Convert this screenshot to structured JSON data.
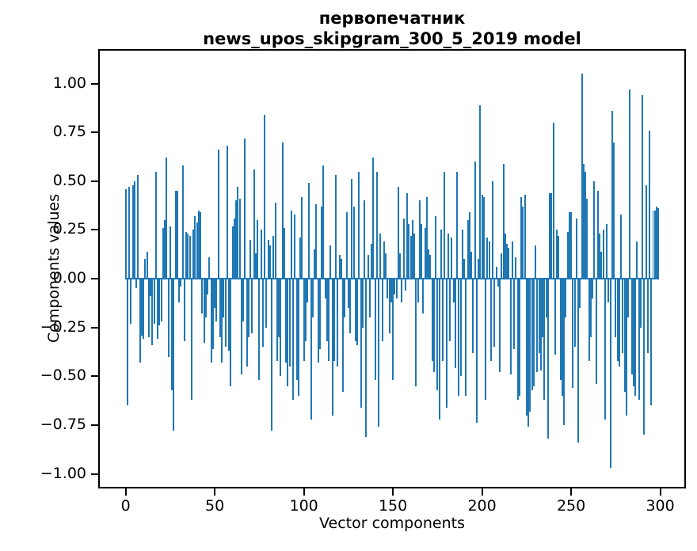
{
  "chart_data": {
    "type": "bar",
    "title_line1": "первопечатник",
    "title_line2": "news_upos_skipgram_300_5_2019 model",
    "xlabel": "Vector components",
    "ylabel": "Components values",
    "legend": null,
    "grid": false,
    "bar_color": "#1f77b4",
    "spine_color": "#000000",
    "xlim": [
      -15.4,
      314.4
    ],
    "ylim": [
      -1.075,
      1.177
    ],
    "bar_width_frac": 0.8,
    "x_ticks": [
      {
        "v": 0,
        "label": "0"
      },
      {
        "v": 50,
        "label": "50"
      },
      {
        "v": 100,
        "label": "100"
      },
      {
        "v": 150,
        "label": "150"
      },
      {
        "v": 200,
        "label": "200"
      },
      {
        "v": 250,
        "label": "250"
      },
      {
        "v": 300,
        "label": "300"
      }
    ],
    "y_ticks": [
      {
        "v": 1.0,
        "label": "1.00"
      },
      {
        "v": 0.75,
        "label": "0.75"
      },
      {
        "v": 0.5,
        "label": "0.50"
      },
      {
        "v": 0.25,
        "label": "0.25"
      },
      {
        "v": 0.0,
        "label": "0.00"
      },
      {
        "v": -0.25,
        "label": "−0.25"
      },
      {
        "v": -0.5,
        "label": "−0.50"
      },
      {
        "v": -0.75,
        "label": "−0.75"
      },
      {
        "v": -1.0,
        "label": "−1.00"
      }
    ],
    "values": [
      0.46,
      -0.65,
      0.47,
      -0.23,
      0.48,
      0.5,
      -0.05,
      0.53,
      -0.43,
      -0.29,
      -0.31,
      0.1,
      0.14,
      -0.3,
      -0.09,
      -0.34,
      -0.23,
      0.55,
      -0.31,
      -0.24,
      -0.22,
      0.26,
      0.3,
      0.62,
      -0.4,
      0.27,
      -0.57,
      -0.78,
      0.45,
      0.45,
      -0.12,
      -0.04,
      0.58,
      -0.32,
      0.24,
      0.23,
      0.22,
      -0.62,
      0.25,
      0.32,
      0.29,
      0.35,
      0.34,
      -0.18,
      -0.33,
      -0.2,
      -0.08,
      0.11,
      -0.43,
      -0.36,
      -0.15,
      -0.22,
      0.66,
      -0.3,
      -0.43,
      -0.2,
      -0.35,
      0.68,
      -0.37,
      -0.55,
      0.27,
      0.31,
      0.4,
      0.47,
      0.41,
      -0.49,
      -0.22,
      0.72,
      -0.45,
      -0.3,
      0.2,
      -0.28,
      0.56,
      0.13,
      0.3,
      -0.52,
      0.25,
      -0.35,
      0.84,
      -0.25,
      0.2,
      0.17,
      -0.78,
      0.22,
      0.39,
      -0.42,
      -0.3,
      -0.5,
      0.7,
      0.26,
      -0.43,
      -0.55,
      -0.45,
      0.35,
      -0.62,
      0.33,
      -0.52,
      -0.6,
      0.21,
      0.42,
      -0.42,
      -0.32,
      -0.12,
      0.49,
      -0.72,
      -0.2,
      0.15,
      0.38,
      -0.43,
      -0.36,
      0.37,
      0.58,
      -0.1,
      -0.32,
      -0.42,
      0.17,
      -0.7,
      -0.42,
      0.53,
      -0.45,
      0.12,
      0.1,
      -0.58,
      -0.2,
      0.34,
      -0.15,
      -0.28,
      0.51,
      0.37,
      -0.32,
      -0.34,
      0.55,
      -0.66,
      -0.25,
      0.4,
      -0.81,
      0.12,
      -0.2,
      0.18,
      0.62,
      -0.52,
      0.55,
      -0.76,
      0.23,
      -0.32,
      0.19,
      0.13,
      -0.1,
      -0.28,
      -0.12,
      -0.52,
      -0.08,
      -0.1,
      0.47,
      0.13,
      -0.12,
      0.31,
      -0.06,
      0.44,
      0.28,
      0.22,
      0.3,
      0.23,
      -0.55,
      -0.12,
      0.4,
      0.28,
      -0.18,
      0.26,
      0.42,
      0.15,
      0.12,
      -0.42,
      -0.48,
      0.32,
      -0.57,
      -0.72,
      0.25,
      -0.42,
      0.55,
      -0.66,
      0.23,
      -0.32,
      0.21,
      -0.12,
      -0.46,
      0.55,
      -0.6,
      -0.5,
      0.25,
      0.1,
      -0.6,
      0.3,
      0.34,
      0.14,
      -0.38,
      0.6,
      -0.74,
      0.1,
      0.89,
      0.43,
      0.42,
      -0.62,
      0.21,
      0.19,
      -0.42,
      0.5,
      -0.35,
      0.06,
      -0.04,
      -0.48,
      0.13,
      0.59,
      0.23,
      0.18,
      0.16,
      -0.49,
      0.19,
      -0.36,
      0.11,
      -0.62,
      -0.6,
      0.42,
      0.37,
      0.43,
      -0.7,
      -0.76,
      -0.68,
      -0.57,
      -0.55,
      0.17,
      -0.48,
      -0.38,
      -0.47,
      -0.3,
      -0.62,
      -0.2,
      -0.82,
      0.44,
      0.44,
      0.8,
      -0.39,
      0.25,
      0.22,
      -0.52,
      -0.6,
      -0.75,
      -0.2,
      0.24,
      0.34,
      0.34,
      -0.56,
      -0.35,
      0.31,
      -0.84,
      -0.15,
      1.05,
      0.59,
      0.55,
      0.41,
      -0.42,
      -0.3,
      -0.1,
      0.5,
      -0.54,
      0.45,
      0.23,
      0.14,
      0.25,
      -0.72,
      0.28,
      -0.12,
      -0.97,
      0.86,
      0.7,
      -0.3,
      -0.42,
      -0.45,
      0.33,
      -0.38,
      -0.58,
      -0.7,
      -0.2,
      0.97,
      -0.49,
      -0.55,
      -0.6,
      0.19,
      -0.62,
      -0.25,
      0.94,
      -0.8,
      0.48,
      -0.38,
      0.76,
      -0.65,
      0.35,
      0.35,
      0.37,
      0.36
    ]
  }
}
